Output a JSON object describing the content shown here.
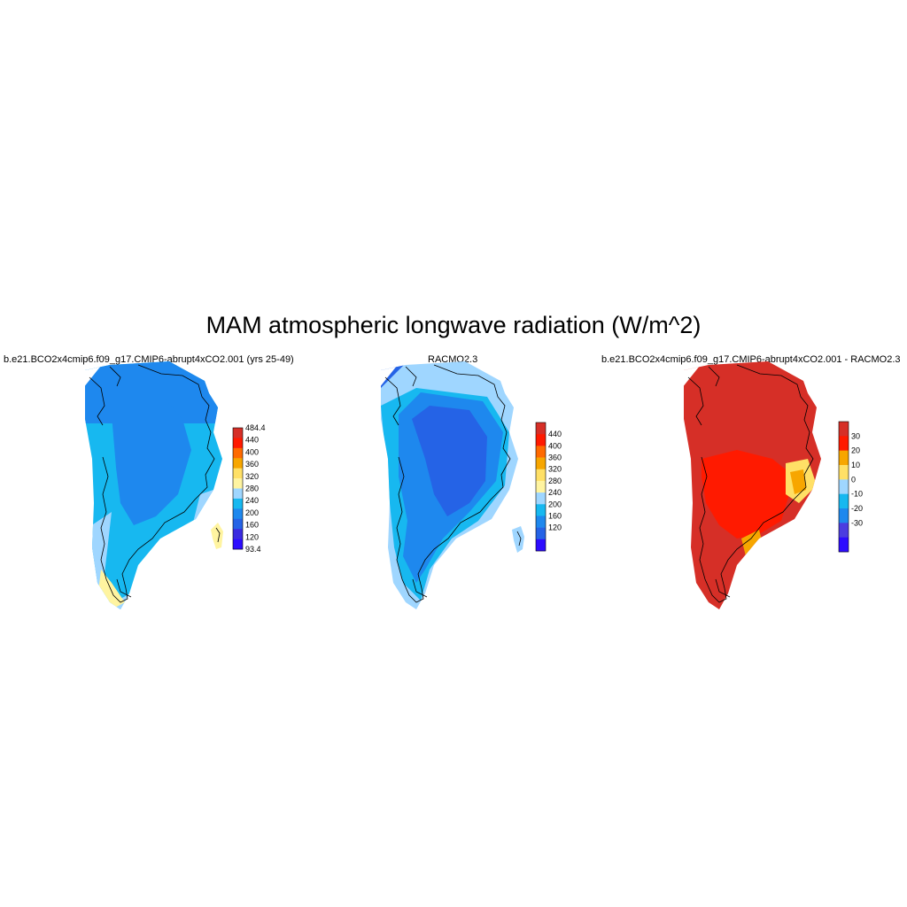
{
  "title": "MAM atmospheric longwave radiation (W/m^2)",
  "panels": [
    {
      "title": "b.e21.BCO2x4cmip6.f09_g17.CMIP6-abrupt4xCO2.001 (yrs 25-49)",
      "colorbar": {
        "labels": [
          "484.4",
          "440",
          "400",
          "360",
          "320",
          "280",
          "240",
          "200",
          "160",
          "120",
          "93.4"
        ],
        "colors": [
          "#d62f27",
          "#ff1a00",
          "#ff6a00",
          "#f7a600",
          "#ffe066",
          "#fff4a0",
          "#9fd6ff",
          "#17b8f0",
          "#1e88ee",
          "#2563e6",
          "#3a2be0",
          "#2d0cff"
        ]
      }
    },
    {
      "title": "RACMO2.3",
      "colorbar": {
        "labels": [
          "440",
          "400",
          "360",
          "320",
          "280",
          "240",
          "200",
          "160",
          "120"
        ],
        "colors": [
          "#d62f27",
          "#ff1a00",
          "#ff6a00",
          "#f7a600",
          "#ffe066",
          "#fff4a0",
          "#9fd6ff",
          "#17b8f0",
          "#1e88ee",
          "#2563e6",
          "#2d0cff"
        ]
      }
    },
    {
      "title": "b.e21.BCO2x4cmip6.f09_g17.CMIP6-abrupt4xCO2.001 - RACMO2.3",
      "colorbar": {
        "labels": [
          "30",
          "20",
          "10",
          "0",
          "-10",
          "-20",
          "-30"
        ],
        "colors": [
          "#d62f27",
          "#ff1a00",
          "#f7a600",
          "#ffe066",
          "#9fd6ff",
          "#17b8f0",
          "#1e88ee",
          "#4b3de0",
          "#2d0cff"
        ]
      }
    }
  ]
}
